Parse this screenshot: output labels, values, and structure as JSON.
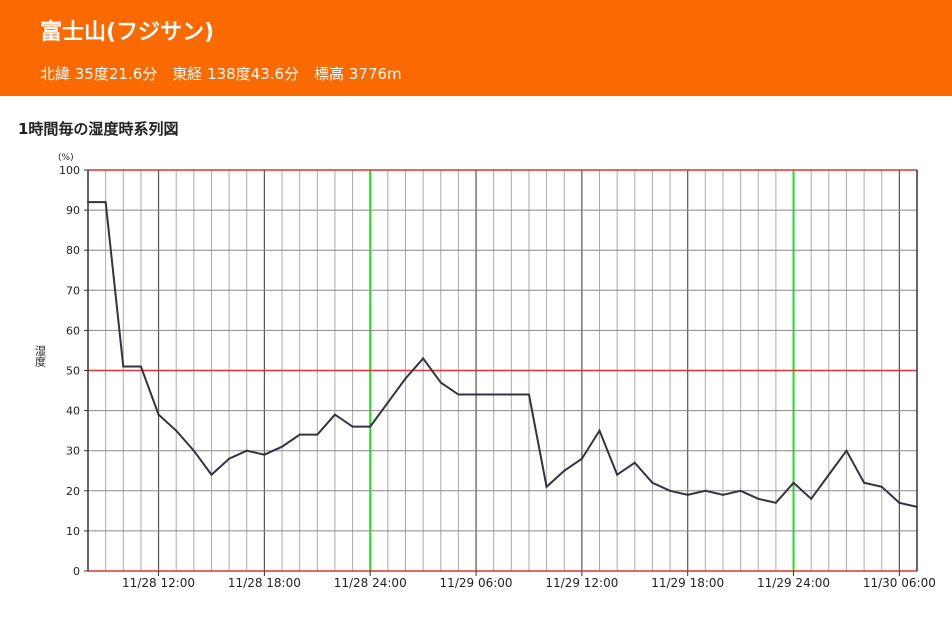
{
  "header": {
    "title": "富士山(フジサン)",
    "subtitle": "北緯 35度21.6分　東経 138度43.6分　標高 3776m"
  },
  "chart_data": {
    "type": "line",
    "title": "1時間毎の湿度時系列図",
    "ylabel": "湿度",
    "yunit": "(%)",
    "ylim": [
      0,
      100
    ],
    "yticks": [
      0,
      10,
      20,
      30,
      40,
      50,
      60,
      70,
      80,
      90,
      100
    ],
    "x_start_hour": 8,
    "x_end_hour": 55,
    "xtick_labels": [
      {
        "hour": 12,
        "label": "11/28 12:00"
      },
      {
        "hour": 18,
        "label": "11/28 18:00"
      },
      {
        "hour": 24,
        "label": "11/28 24:00"
      },
      {
        "hour": 30,
        "label": "11/29 06:00"
      },
      {
        "hour": 36,
        "label": "11/29 12:00"
      },
      {
        "hour": 42,
        "label": "11/29 18:00"
      },
      {
        "hour": 48,
        "label": "11/29 24:00"
      },
      {
        "hour": 54,
        "label": "11/30 06:00"
      }
    ],
    "series": [
      {
        "name": "湿度",
        "color": "#333344",
        "values": [
          92,
          92,
          51,
          51,
          39,
          35,
          30,
          24,
          28,
          30,
          29,
          31,
          34,
          34,
          39,
          36,
          36,
          42,
          48,
          53,
          47,
          44,
          44,
          44,
          44,
          44,
          21,
          25,
          28,
          35,
          24,
          27,
          22,
          20,
          19,
          20,
          19,
          20,
          18,
          17,
          22,
          18,
          24,
          30,
          22,
          21,
          17,
          16
        ]
      }
    ]
  }
}
